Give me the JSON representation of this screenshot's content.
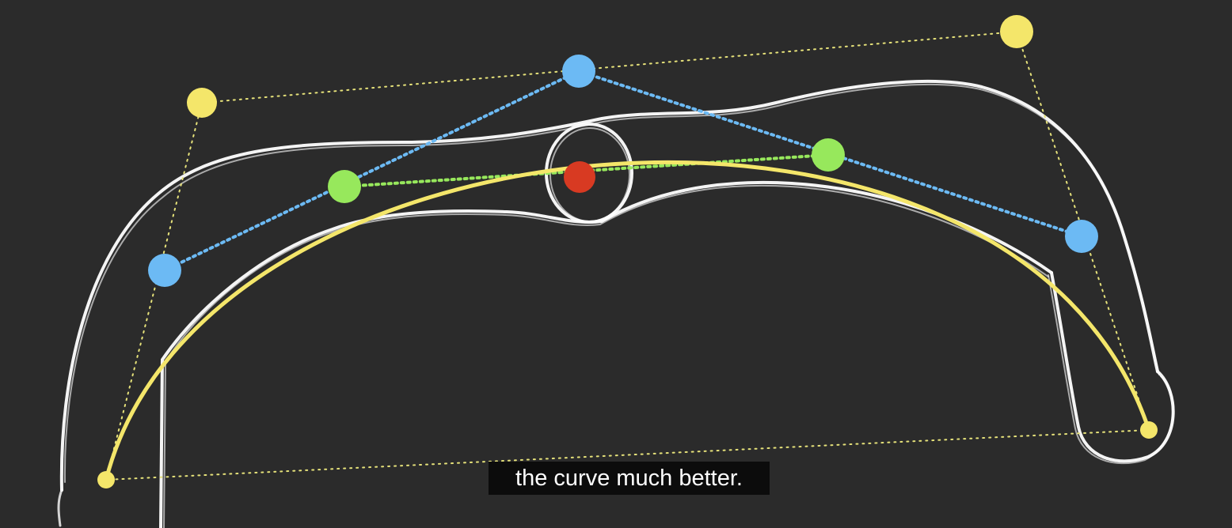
{
  "subtitle": {
    "text": "the curve much better."
  },
  "colors": {
    "background": "#2b2b2b",
    "sketch_outline": "#ffffff",
    "anchor_points": "#f4e66a",
    "level1_points": "#6cbaf4",
    "level2_points": "#97e85c",
    "curve_point": "#d83a22",
    "bezier_curve": "#f4e66a",
    "subtitle_background": "#0c0c0c",
    "subtitle_text": "#ffffff"
  },
  "diagram": {
    "description_type": "de-casteljau-bezier-construction",
    "control_points": 4,
    "evaluated_point": "red"
  }
}
